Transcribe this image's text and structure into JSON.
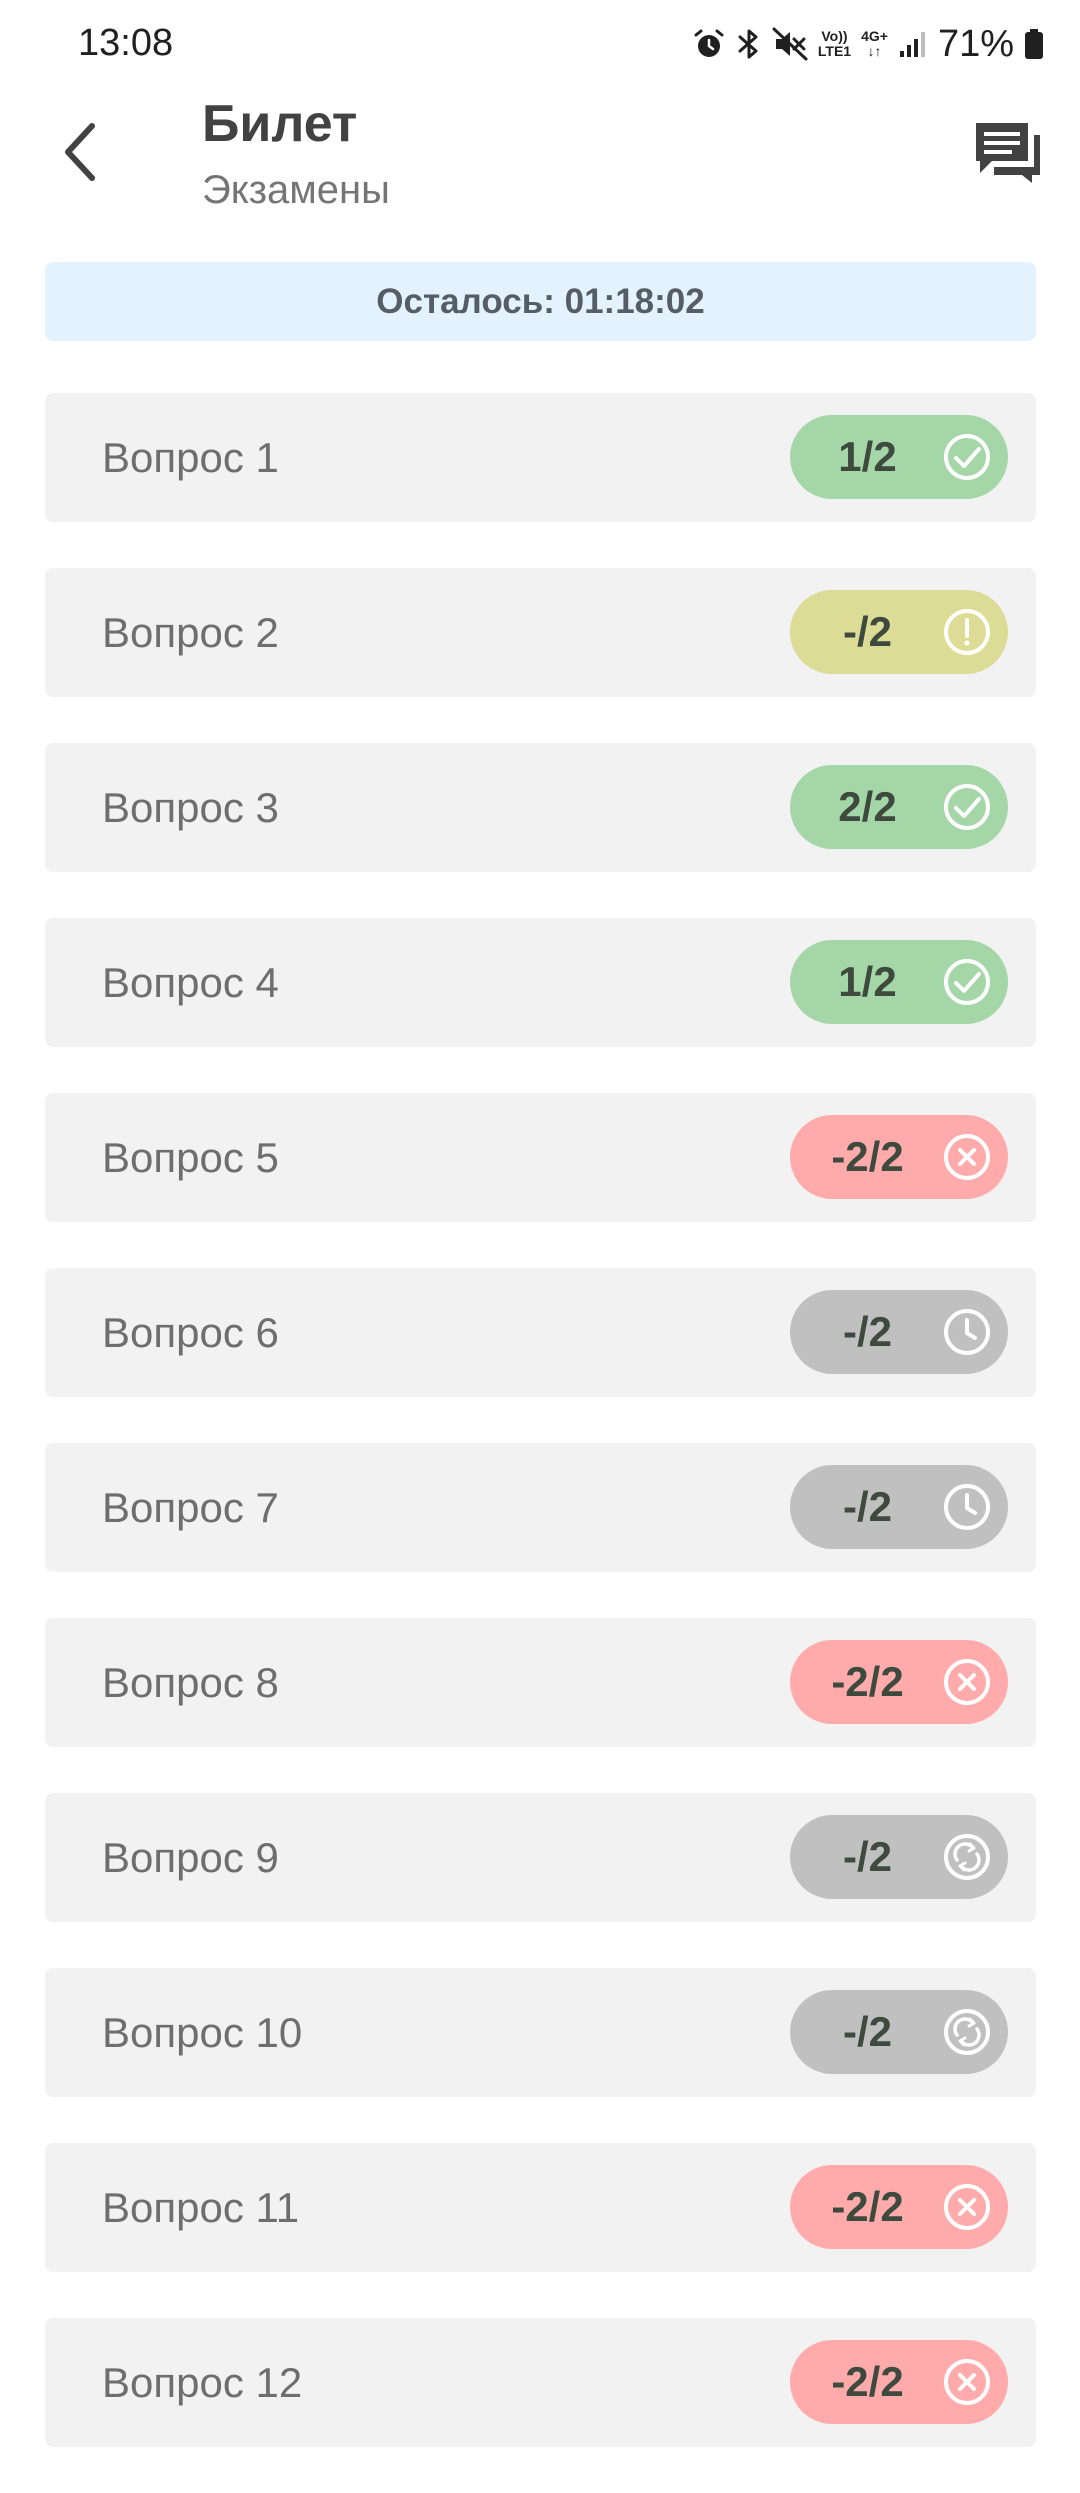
{
  "status_bar": {
    "time": "13:08",
    "network_top": "Vo))",
    "network_bottom": "LTE1",
    "network_type": "4G+",
    "battery": "71%"
  },
  "header": {
    "title": "Билет",
    "subtitle": "Экзамены"
  },
  "timer": {
    "text": "Осталось: 01:18:02"
  },
  "colors": {
    "correct": "#a5d6a7",
    "partial": "#dcdc96",
    "wrong": "#ffabab",
    "pending": "#c0c0c0",
    "banner": "#e3f2fd"
  },
  "questions": [
    {
      "label": "Вопрос 1",
      "score": "1/2",
      "status": "correct",
      "icon": "check-circle-icon"
    },
    {
      "label": "Вопрос 2",
      "score": "-/2",
      "status": "partial",
      "icon": "exclamation-circle-icon"
    },
    {
      "label": "Вопрос 3",
      "score": "2/2",
      "status": "correct",
      "icon": "check-circle-icon"
    },
    {
      "label": "Вопрос 4",
      "score": "1/2",
      "status": "correct",
      "icon": "check-circle-icon"
    },
    {
      "label": "Вопрос 5",
      "score": "-2/2",
      "status": "wrong",
      "icon": "x-circle-icon"
    },
    {
      "label": "Вопрос 6",
      "score": "-/2",
      "status": "pending",
      "icon": "clock-icon"
    },
    {
      "label": "Вопрос 7",
      "score": "-/2",
      "status": "pending",
      "icon": "clock-icon"
    },
    {
      "label": "Вопрос 8",
      "score": "-2/2",
      "status": "wrong",
      "icon": "x-circle-icon"
    },
    {
      "label": "Вопрос 9",
      "score": "-/2",
      "status": "pending",
      "icon": "sync-icon"
    },
    {
      "label": "Вопрос 10",
      "score": "-/2",
      "status": "pending",
      "icon": "sync-icon"
    },
    {
      "label": "Вопрос 11",
      "score": "-2/2",
      "status": "wrong",
      "icon": "x-circle-icon"
    },
    {
      "label": "Вопрос 12",
      "score": "-2/2",
      "status": "wrong",
      "icon": "x-circle-icon"
    }
  ]
}
